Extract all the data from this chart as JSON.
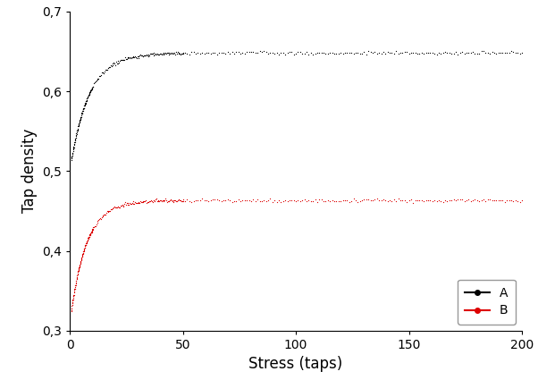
{
  "title": "",
  "xlabel": "Stress (taps)",
  "ylabel": "Tap density",
  "xlim": [
    0,
    200
  ],
  "ylim": [
    0.3,
    0.7
  ],
  "yticks": [
    0.3,
    0.4,
    0.5,
    0.6,
    0.7
  ],
  "ytick_labels": [
    "0,3",
    "0,4",
    "0,5",
    "0,6",
    "0,7"
  ],
  "xticks": [
    0,
    50,
    100,
    150,
    200
  ],
  "curve_A": {
    "y0": 0.505,
    "y_max": 0.648,
    "color": "#000000",
    "label": "A",
    "rate": 0.12
  },
  "curve_B": {
    "y0": 0.315,
    "y_max": 0.463,
    "color": "#dd0000",
    "label": "B",
    "rate": 0.14
  },
  "markersize": 1.8,
  "legend_loc": "lower right",
  "legend_fontsize": 10,
  "axis_fontsize": 12,
  "tick_fontsize": 10,
  "background_color": "#ffffff"
}
